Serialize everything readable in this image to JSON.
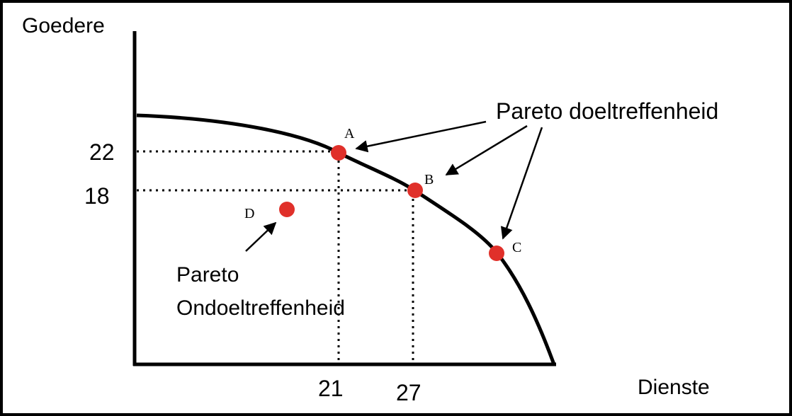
{
  "axes": {
    "y_label": "Goedere",
    "x_label": "Dienste",
    "y_ticks": [
      "22",
      "18"
    ],
    "x_ticks": [
      "21",
      "27"
    ]
  },
  "points": [
    {
      "id": "A",
      "label": "A",
      "dienste": 21,
      "goedere": 22
    },
    {
      "id": "B",
      "label": "B",
      "dienste": 27,
      "goedere": 18
    },
    {
      "id": "C",
      "label": "C"
    },
    {
      "id": "D",
      "label": "D"
    }
  ],
  "annotations": {
    "efficient": "Pareto doeltreffenheid",
    "inefficient_line1": "Pareto",
    "inefficient_line2": "Ondoeltreffenheid"
  },
  "colors": {
    "point": "#e0302a",
    "curve": "#000000",
    "frame": "#000000",
    "text": "#000000"
  }
}
